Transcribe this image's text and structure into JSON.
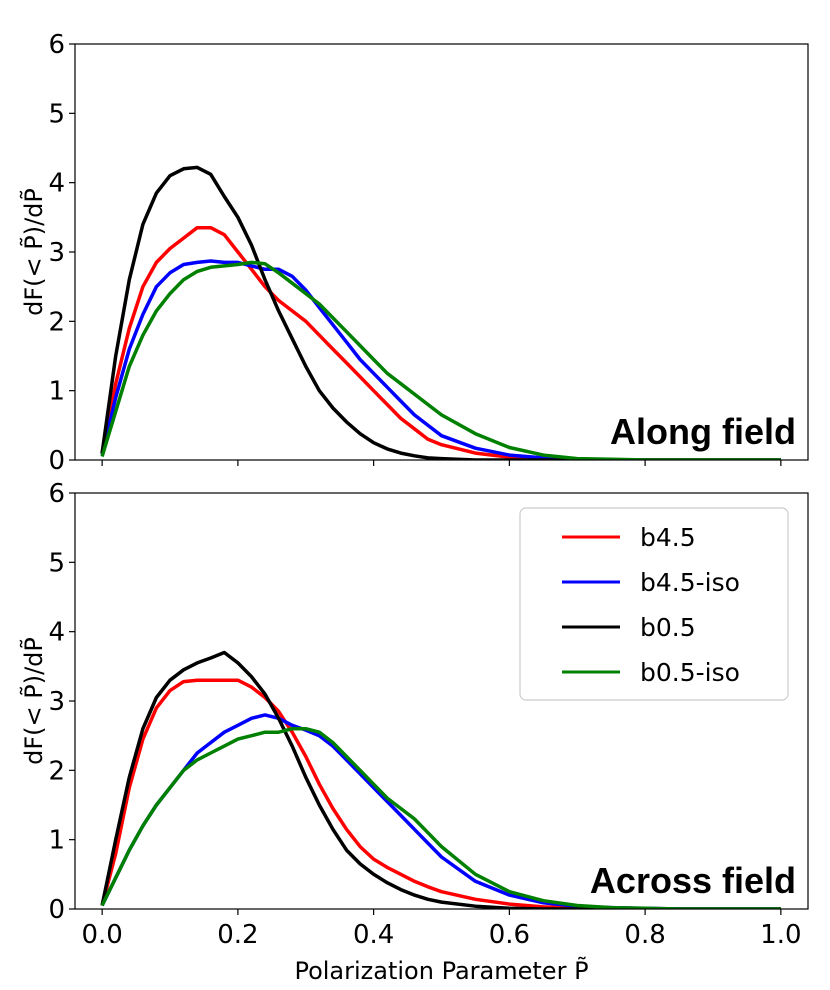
{
  "chart_data": [
    {
      "type": "line",
      "panel_label": "Along field",
      "xlabel": "",
      "ylabel": "dF(< P̃)/dP̃",
      "xlim": [
        -0.04,
        1.04
      ],
      "ylim": [
        0,
        6
      ],
      "yticks": [
        "0",
        "1",
        "2",
        "3",
        "4",
        "5",
        "6"
      ],
      "legend": false,
      "x": [
        0.0,
        0.02,
        0.04,
        0.06,
        0.08,
        0.1,
        0.12,
        0.14,
        0.16,
        0.18,
        0.2,
        0.22,
        0.24,
        0.26,
        0.28,
        0.3,
        0.32,
        0.34,
        0.36,
        0.38,
        0.4,
        0.42,
        0.44,
        0.46,
        0.48,
        0.5,
        0.55,
        0.6,
        0.65,
        0.7,
        0.75,
        0.8,
        0.85,
        0.9,
        0.95,
        1.0
      ],
      "series": [
        {
          "name": "b4.5",
          "color": "#ff0000",
          "values": [
            0.1,
            1.1,
            1.9,
            2.5,
            2.85,
            3.05,
            3.2,
            3.35,
            3.35,
            3.25,
            3.0,
            2.75,
            2.5,
            2.3,
            2.15,
            2.0,
            1.8,
            1.6,
            1.4,
            1.2,
            1.0,
            0.8,
            0.6,
            0.45,
            0.3,
            0.22,
            0.1,
            0.04,
            0.01,
            0.0,
            0.0,
            0.0,
            0.0,
            0.0,
            0.0,
            0.0
          ]
        },
        {
          "name": "b4.5-iso",
          "color": "#0000ff",
          "values": [
            0.08,
            0.9,
            1.6,
            2.1,
            2.5,
            2.7,
            2.82,
            2.85,
            2.87,
            2.85,
            2.85,
            2.8,
            2.75,
            2.75,
            2.65,
            2.45,
            2.2,
            1.95,
            1.7,
            1.45,
            1.25,
            1.05,
            0.85,
            0.65,
            0.5,
            0.35,
            0.17,
            0.07,
            0.03,
            0.01,
            0.0,
            0.0,
            0.0,
            0.0,
            0.0,
            0.0
          ]
        },
        {
          "name": "b0.5",
          "color": "#000000",
          "values": [
            0.1,
            1.5,
            2.6,
            3.4,
            3.85,
            4.1,
            4.2,
            4.22,
            4.12,
            3.8,
            3.5,
            3.1,
            2.6,
            2.15,
            1.75,
            1.35,
            1.0,
            0.75,
            0.55,
            0.38,
            0.25,
            0.16,
            0.1,
            0.06,
            0.03,
            0.02,
            0.0,
            0.0,
            0.0,
            0.0,
            0.0,
            0.0,
            0.0,
            0.0,
            0.0,
            0.0
          ]
        },
        {
          "name": "b0.5-iso",
          "color": "#008000",
          "values": [
            0.05,
            0.7,
            1.35,
            1.8,
            2.15,
            2.4,
            2.6,
            2.72,
            2.78,
            2.8,
            2.82,
            2.85,
            2.83,
            2.7,
            2.55,
            2.4,
            2.25,
            2.05,
            1.85,
            1.65,
            1.45,
            1.25,
            1.1,
            0.95,
            0.8,
            0.65,
            0.38,
            0.18,
            0.07,
            0.02,
            0.01,
            0.0,
            0.0,
            0.0,
            0.0,
            0.0
          ]
        }
      ]
    },
    {
      "type": "line",
      "panel_label": "Across field",
      "xlabel": "Polarization Parameter P̃",
      "ylabel": "dF(< P̃)/dP̃",
      "xlim": [
        -0.04,
        1.04
      ],
      "ylim": [
        0,
        6
      ],
      "xticks": [
        "0.0",
        "0.2",
        "0.4",
        "0.6",
        "0.8",
        "1.0"
      ],
      "yticks": [
        "0",
        "1",
        "2",
        "3",
        "4",
        "5",
        "6"
      ],
      "legend": true,
      "legend_position": "top-right",
      "x": [
        0.0,
        0.02,
        0.04,
        0.06,
        0.08,
        0.1,
        0.12,
        0.14,
        0.16,
        0.18,
        0.2,
        0.22,
        0.24,
        0.26,
        0.28,
        0.3,
        0.32,
        0.34,
        0.36,
        0.38,
        0.4,
        0.42,
        0.44,
        0.46,
        0.48,
        0.5,
        0.55,
        0.6,
        0.65,
        0.7,
        0.75,
        0.8,
        0.85,
        0.9,
        0.95,
        1.0
      ],
      "series": [
        {
          "name": "b4.5",
          "color": "#ff0000",
          "values": [
            0.05,
            0.8,
            1.75,
            2.45,
            2.9,
            3.15,
            3.28,
            3.3,
            3.3,
            3.3,
            3.3,
            3.2,
            3.05,
            2.85,
            2.55,
            2.2,
            1.8,
            1.45,
            1.15,
            0.9,
            0.72,
            0.6,
            0.5,
            0.4,
            0.32,
            0.25,
            0.14,
            0.07,
            0.03,
            0.01,
            0.0,
            0.0,
            0.0,
            0.0,
            0.0,
            0.0
          ]
        },
        {
          "name": "b4.5-iso",
          "color": "#0000ff",
          "values": [
            0.05,
            0.45,
            0.85,
            1.2,
            1.5,
            1.75,
            2.0,
            2.25,
            2.4,
            2.55,
            2.65,
            2.75,
            2.8,
            2.75,
            2.65,
            2.58,
            2.5,
            2.35,
            2.15,
            1.95,
            1.75,
            1.55,
            1.35,
            1.15,
            0.95,
            0.75,
            0.4,
            0.2,
            0.09,
            0.04,
            0.02,
            0.01,
            0.0,
            0.0,
            0.0,
            0.0
          ]
        },
        {
          "name": "b0.5",
          "color": "#000000",
          "values": [
            0.05,
            1.0,
            1.9,
            2.6,
            3.05,
            3.3,
            3.45,
            3.55,
            3.62,
            3.7,
            3.55,
            3.35,
            3.1,
            2.75,
            2.35,
            1.9,
            1.5,
            1.15,
            0.85,
            0.65,
            0.5,
            0.38,
            0.28,
            0.2,
            0.14,
            0.1,
            0.04,
            0.01,
            0.0,
            0.0,
            0.0,
            0.0,
            0.0,
            0.0,
            0.0,
            0.0
          ]
        },
        {
          "name": "b0.5-iso",
          "color": "#008000",
          "values": [
            0.05,
            0.45,
            0.85,
            1.2,
            1.5,
            1.75,
            2.0,
            2.15,
            2.25,
            2.35,
            2.45,
            2.5,
            2.55,
            2.55,
            2.6,
            2.6,
            2.55,
            2.4,
            2.2,
            2.0,
            1.8,
            1.6,
            1.45,
            1.3,
            1.1,
            0.9,
            0.5,
            0.25,
            0.12,
            0.05,
            0.02,
            0.01,
            0.0,
            0.0,
            0.0,
            0.0
          ]
        }
      ]
    }
  ]
}
